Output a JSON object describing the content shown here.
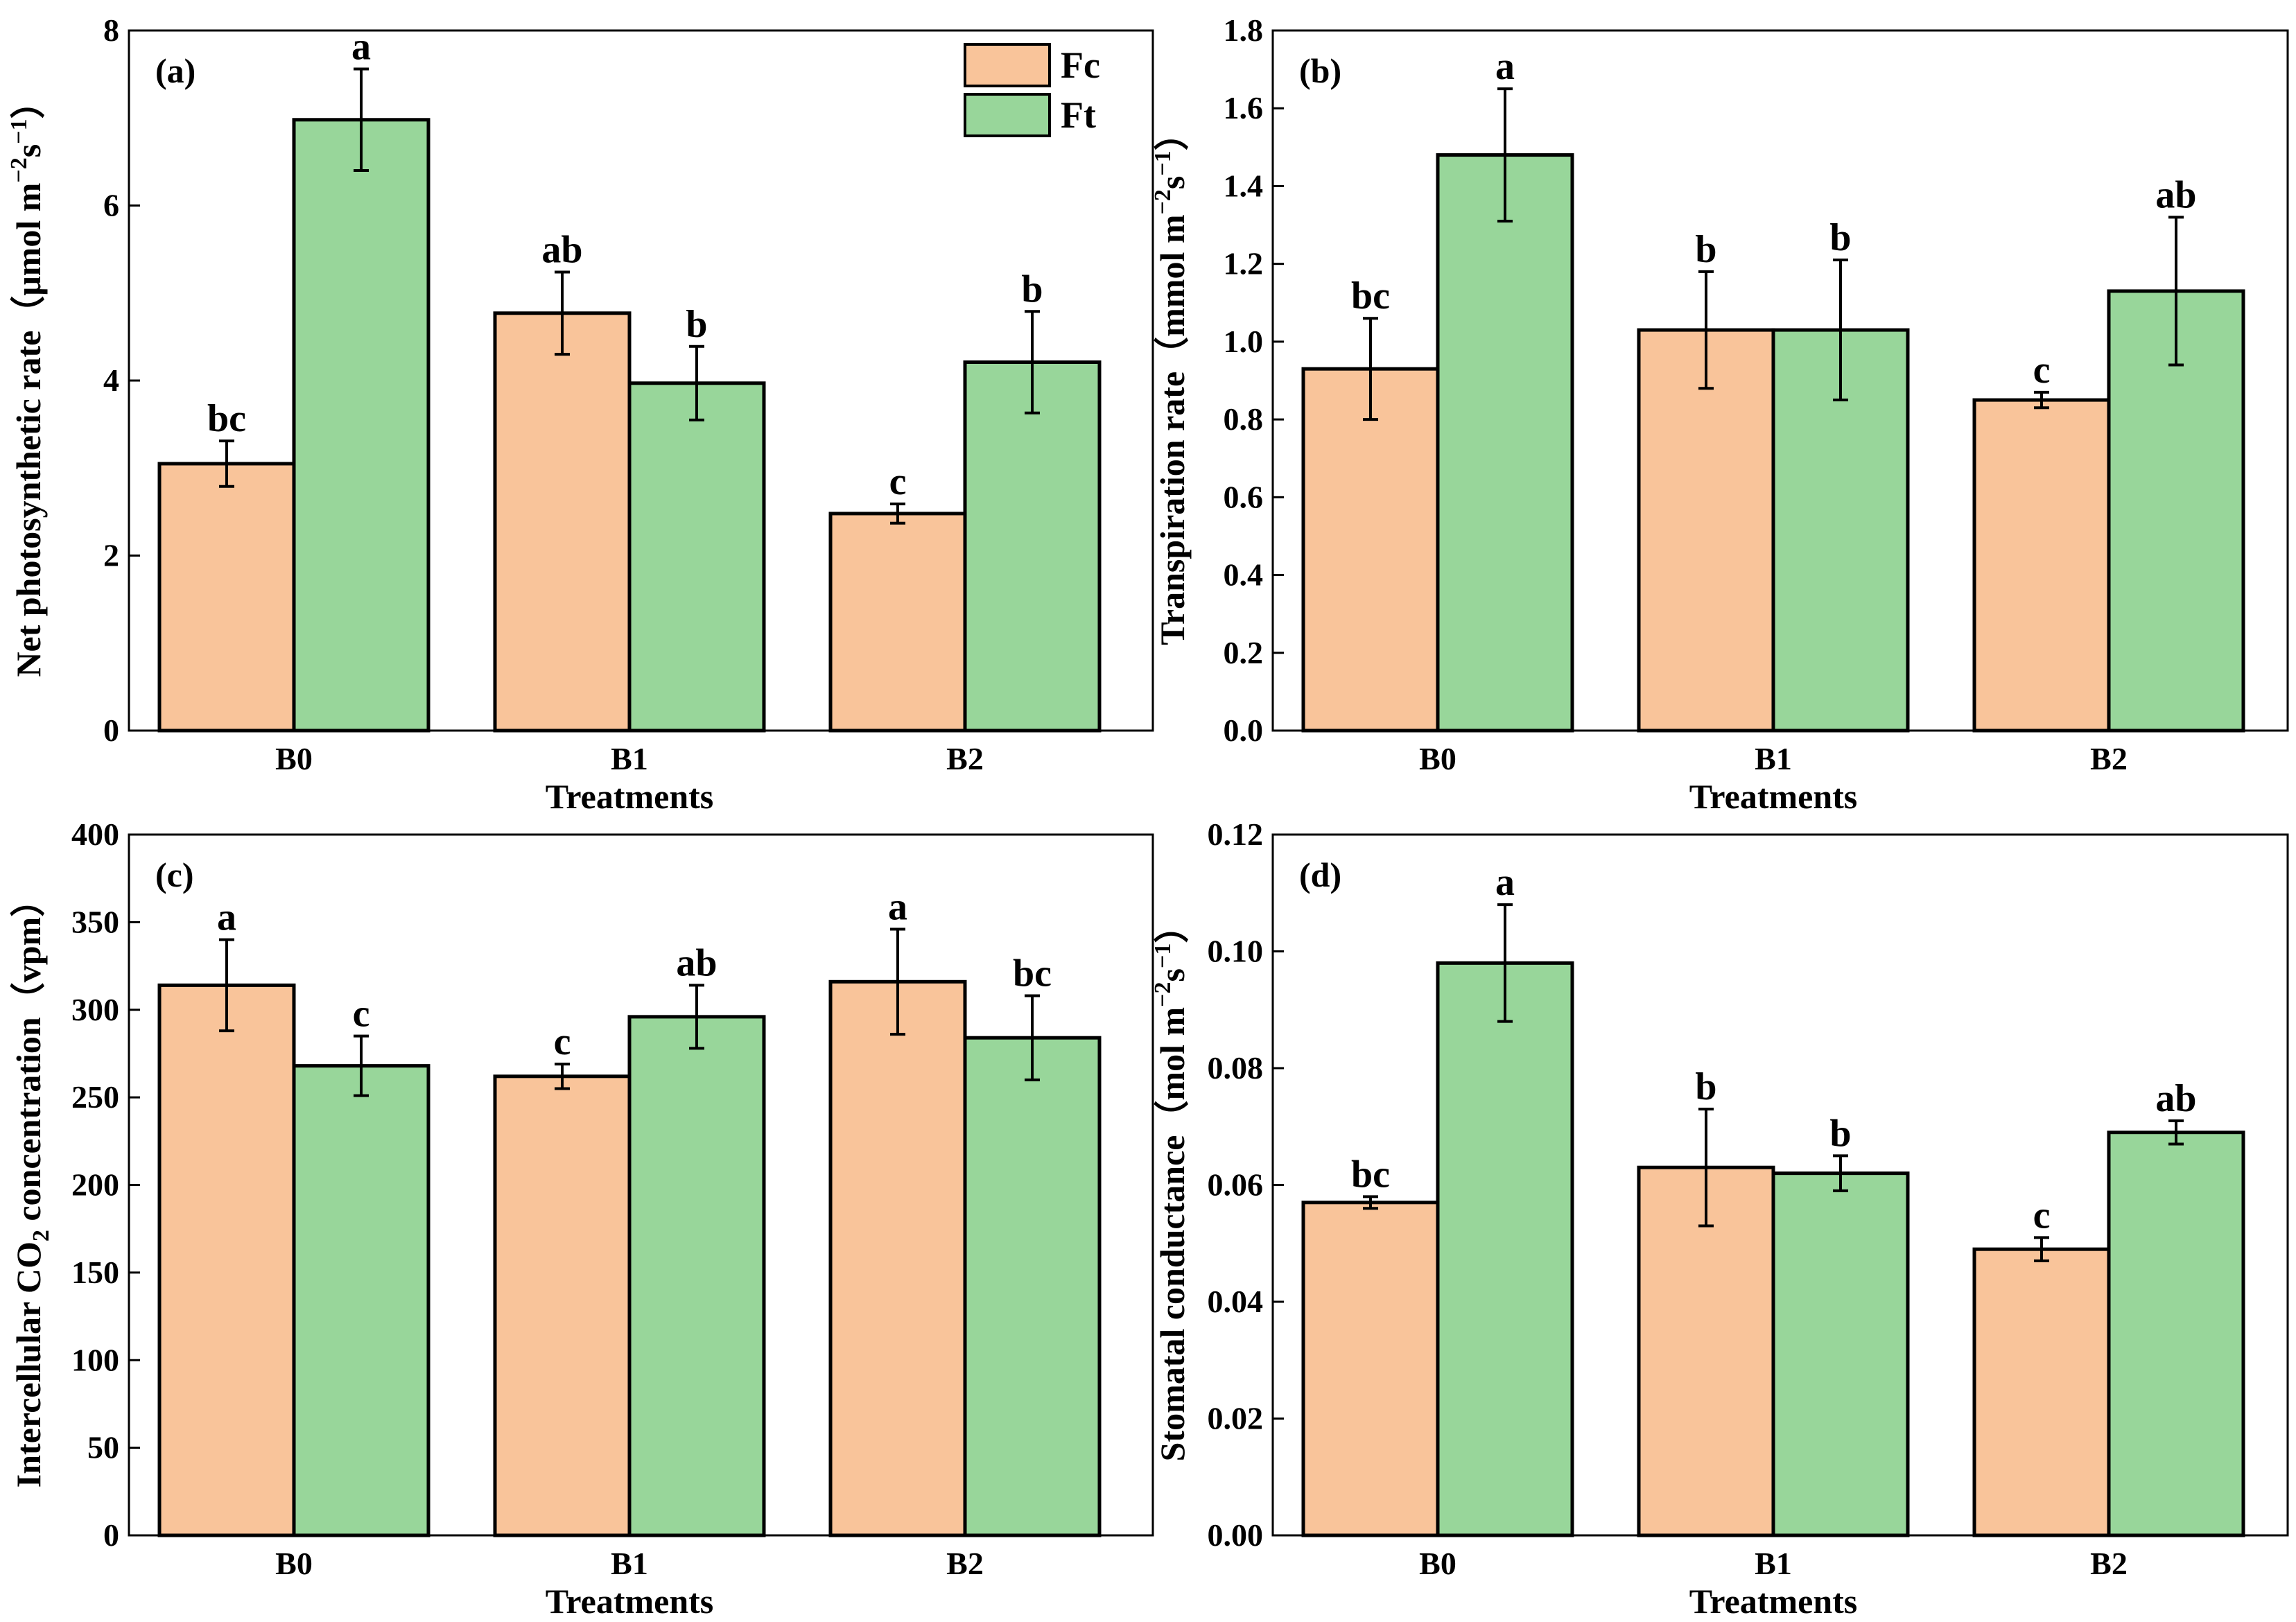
{
  "colors": {
    "fc": "#F9C49A",
    "ft": "#98D69A",
    "stroke": "#000000"
  },
  "legend": [
    {
      "label": "Fc",
      "color_key": "fc"
    },
    {
      "label": "Ft",
      "color_key": "ft"
    }
  ],
  "chart_data": [
    {
      "type": "bar",
      "panel": "(a)",
      "title": "",
      "xlabel": "Treatments",
      "ylabel": {
        "main": "Net photosynthetic rate（μmol m",
        "sup1": "−2",
        "mid": "s",
        "sup2": "−1",
        "end": "）"
      },
      "categories": [
        "B0",
        "B1",
        "B2"
      ],
      "ylim": [
        0,
        8
      ],
      "yticks": [
        0,
        2,
        4,
        6,
        8
      ],
      "ytick_labels": [
        "0",
        "2",
        "4",
        "6",
        "8"
      ],
      "series": [
        {
          "name": "Fc",
          "values": [
            3.05,
            4.77,
            2.48
          ],
          "errors": [
            0.26,
            0.47,
            0.11
          ],
          "letters": [
            "bc",
            "ab",
            "c"
          ]
        },
        {
          "name": "Ft",
          "values": [
            6.98,
            3.97,
            4.21
          ],
          "errors": [
            0.58,
            0.42,
            0.58
          ],
          "letters": [
            "a",
            "b",
            "b"
          ]
        }
      ]
    },
    {
      "type": "bar",
      "panel": "(b)",
      "title": "",
      "xlabel": "Treatments",
      "ylabel": {
        "main": "Transpiration rate（mmol m",
        "sup1": "−2",
        "mid": "s",
        "sup2": "−1",
        "end": "）"
      },
      "categories": [
        "B0",
        "B1",
        "B2"
      ],
      "ylim": [
        0,
        1.8
      ],
      "yticks": [
        0,
        0.2,
        0.4,
        0.6,
        0.8,
        1.0,
        1.2,
        1.4,
        1.6,
        1.8
      ],
      "ytick_labels": [
        "0.0",
        "0.2",
        "0.4",
        "0.6",
        "0.8",
        "1.0",
        "1.2",
        "1.4",
        "1.6",
        "1.8"
      ],
      "series": [
        {
          "name": "Fc",
          "values": [
            0.93,
            1.03,
            0.85
          ],
          "errors": [
            0.13,
            0.15,
            0.02
          ],
          "letters": [
            "bc",
            "b",
            "c"
          ]
        },
        {
          "name": "Ft",
          "values": [
            1.48,
            1.03,
            1.13
          ],
          "errors": [
            0.17,
            0.18,
            0.19
          ],
          "letters": [
            "a",
            "b",
            "ab"
          ]
        }
      ]
    },
    {
      "type": "bar",
      "panel": "(c)",
      "title": "",
      "xlabel": "Treatments",
      "ylabel": {
        "main": "Intercellular CO",
        "sub": "2",
        "end": " concentration（vpm）"
      },
      "categories": [
        "B0",
        "B1",
        "B2"
      ],
      "ylim": [
        0,
        400
      ],
      "yticks": [
        0,
        50,
        100,
        150,
        200,
        250,
        300,
        350,
        400
      ],
      "ytick_labels": [
        "0",
        "50",
        "100",
        "150",
        "200",
        "250",
        "300",
        "350",
        "400"
      ],
      "series": [
        {
          "name": "Fc",
          "values": [
            314,
            262,
            316
          ],
          "errors": [
            26,
            7,
            30
          ],
          "letters": [
            "a",
            "c",
            "a"
          ]
        },
        {
          "name": "Ft",
          "values": [
            268,
            296,
            284
          ],
          "errors": [
            17,
            18,
            24
          ],
          "letters": [
            "c",
            "ab",
            "bc"
          ]
        }
      ]
    },
    {
      "type": "bar",
      "panel": "(d)",
      "title": "",
      "xlabel": "Treatments",
      "ylabel": {
        "main": "Stomatal conductance（mol m",
        "sup1": "−2",
        "mid": "s",
        "sup2": "−1",
        "end": "）"
      },
      "categories": [
        "B0",
        "B1",
        "B2"
      ],
      "ylim": [
        0,
        0.12
      ],
      "yticks": [
        0,
        0.02,
        0.04,
        0.06,
        0.08,
        0.1,
        0.12
      ],
      "ytick_labels": [
        "0.00",
        "0.02",
        "0.04",
        "0.06",
        "0.08",
        "0.10",
        "0.12"
      ],
      "series": [
        {
          "name": "Fc",
          "values": [
            0.057,
            0.063,
            0.049
          ],
          "errors": [
            0.001,
            0.01,
            0.002
          ],
          "letters": [
            "bc",
            "b",
            "c"
          ]
        },
        {
          "name": "Ft",
          "values": [
            0.098,
            0.062,
            0.069
          ],
          "errors": [
            0.01,
            0.003,
            0.002
          ],
          "letters": [
            "a",
            "b",
            "ab"
          ]
        }
      ]
    }
  ]
}
